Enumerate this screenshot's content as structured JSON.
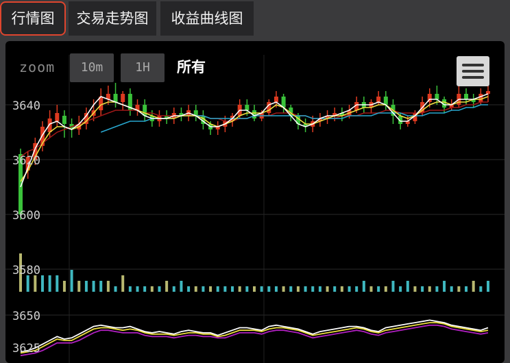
{
  "tabs": [
    {
      "label": "行情图",
      "active": true
    },
    {
      "label": "交易走势图",
      "active": false
    },
    {
      "label": "收益曲线图",
      "active": false
    }
  ],
  "toolbar": {
    "zoom_label": "zoom",
    "zoom_10m": "10m",
    "zoom_1h": "1H",
    "zoom_all": "所有",
    "menu_icon": "hamburger-menu-icon"
  },
  "colors": {
    "up_candle": "#dd3a20",
    "down_candle": "#3ac23a",
    "ma_white": "#ffffff",
    "ma_yellow": "#f0e040",
    "ma_darkred": "#a01818",
    "ma_cyan": "#28a8d0",
    "vol_olive": "#b8b870",
    "vol_teal": "#3fb8c0",
    "indicator_purple": "#b020c0",
    "active_tab_border": "#e0452e"
  },
  "chart_data": {
    "type": "candlestick",
    "price_axis_ticks": [
      "3640",
      "3620",
      "3600",
      "3580"
    ],
    "indicator_axis_ticks": [
      "3650",
      "3625"
    ],
    "candles": [
      [
        3622,
        3600,
        3624,
        3598
      ],
      [
        3616,
        3621,
        3623,
        3613
      ],
      [
        3620,
        3626,
        3628,
        3618
      ],
      [
        3625,
        3632,
        3634,
        3623
      ],
      [
        3630,
        3635,
        3638,
        3628
      ],
      [
        3634,
        3637,
        3640,
        3632
      ],
      [
        3636,
        3633,
        3638,
        3628
      ],
      [
        3633,
        3631,
        3635,
        3628
      ],
      [
        3631,
        3633,
        3636,
        3629
      ],
      [
        3633,
        3637,
        3639,
        3631
      ],
      [
        3636,
        3638,
        3642,
        3634
      ],
      [
        3638,
        3643,
        3646,
        3636
      ],
      [
        3642,
        3644,
        3647,
        3640
      ],
      [
        3644,
        3641,
        3648,
        3639
      ],
      [
        3641,
        3644,
        3645,
        3638
      ],
      [
        3644,
        3638,
        3646,
        3636
      ],
      [
        3638,
        3640,
        3642,
        3636
      ],
      [
        3640,
        3636,
        3642,
        3634
      ],
      [
        3636,
        3634,
        3638,
        3632
      ],
      [
        3634,
        3636,
        3638,
        3632
      ],
      [
        3636,
        3635,
        3638,
        3633
      ],
      [
        3635,
        3637,
        3639,
        3633
      ],
      [
        3637,
        3636,
        3639,
        3634
      ],
      [
        3636,
        3638,
        3640,
        3634
      ],
      [
        3638,
        3636,
        3640,
        3634
      ],
      [
        3636,
        3633,
        3638,
        3631
      ],
      [
        3633,
        3631,
        3634,
        3629
      ],
      [
        3631,
        3632,
        3634,
        3629
      ],
      [
        3632,
        3634,
        3636,
        3630
      ],
      [
        3634,
        3636,
        3637,
        3632
      ],
      [
        3636,
        3640,
        3642,
        3635
      ],
      [
        3640,
        3638,
        3642,
        3636
      ],
      [
        3638,
        3635,
        3640,
        3634
      ],
      [
        3635,
        3637,
        3638,
        3634
      ],
      [
        3637,
        3641,
        3642,
        3636
      ],
      [
        3641,
        3643,
        3645,
        3639
      ],
      [
        3643,
        3639,
        3644,
        3637
      ],
      [
        3639,
        3636,
        3640,
        3634
      ],
      [
        3636,
        3633,
        3637,
        3631
      ],
      [
        3633,
        3632,
        3635,
        3630
      ],
      [
        3632,
        3634,
        3636,
        3630
      ],
      [
        3634,
        3635,
        3637,
        3632
      ],
      [
        3635,
        3636,
        3638,
        3633
      ],
      [
        3636,
        3637,
        3639,
        3634
      ],
      [
        3637,
        3636,
        3639,
        3634
      ],
      [
        3636,
        3638,
        3640,
        3635
      ],
      [
        3638,
        3641,
        3643,
        3637
      ],
      [
        3641,
        3639,
        3643,
        3637
      ],
      [
        3639,
        3641,
        3642,
        3637
      ],
      [
        3641,
        3643,
        3645,
        3640
      ],
      [
        3643,
        3640,
        3645,
        3638
      ],
      [
        3640,
        3636,
        3642,
        3633
      ],
      [
        3636,
        3633,
        3637,
        3631
      ],
      [
        3633,
        3634,
        3636,
        3632
      ],
      [
        3634,
        3637,
        3638,
        3633
      ],
      [
        3637,
        3641,
        3643,
        3636
      ],
      [
        3641,
        3644,
        3646,
        3639
      ],
      [
        3644,
        3642,
        3647,
        3640
      ],
      [
        3642,
        3639,
        3643,
        3637
      ],
      [
        3639,
        3640,
        3642,
        3638
      ],
      [
        3640,
        3644,
        3648,
        3639
      ],
      [
        3644,
        3642,
        3646,
        3640
      ],
      [
        3642,
        3641,
        3644,
        3639
      ],
      [
        3641,
        3644,
        3646,
        3640
      ],
      [
        3644,
        3645,
        3647,
        3641
      ]
    ],
    "ma_white": [
      3610,
      3617,
      3624,
      3629,
      3633,
      3634,
      3632,
      3631,
      3633,
      3636,
      3640,
      3643,
      3642,
      3641,
      3640,
      3639,
      3638,
      3636,
      3635,
      3635,
      3635,
      3636,
      3636,
      3637,
      3636,
      3634,
      3632,
      3632,
      3633,
      3635,
      3638,
      3638,
      3636,
      3637,
      3640,
      3641,
      3639,
      3636,
      3633,
      3632,
      3633,
      3635,
      3636,
      3636,
      3637,
      3638,
      3640,
      3640,
      3640,
      3641,
      3640,
      3637,
      3634,
      3634,
      3636,
      3639,
      3642,
      3642,
      3640,
      3640,
      3642,
      3642,
      3642,
      3643,
      3644
    ],
    "ma_yellow": [
      3612,
      3616,
      3621,
      3626,
      3630,
      3632,
      3632,
      3631,
      3632,
      3634,
      3637,
      3640,
      3641,
      3641,
      3640,
      3639,
      3638,
      3637,
      3636,
      3635,
      3635,
      3635,
      3636,
      3636,
      3636,
      3635,
      3633,
      3632,
      3633,
      3634,
      3636,
      3637,
      3637,
      3637,
      3638,
      3640,
      3639,
      3637,
      3635,
      3633,
      3633,
      3634,
      3635,
      3636,
      3636,
      3637,
      3638,
      3639,
      3639,
      3640,
      3640,
      3638,
      3636,
      3635,
      3636,
      3638,
      3640,
      3641,
      3641,
      3640,
      3641,
      3641,
      3642,
      3642,
      3643
    ],
    "ma_darkred": [
      3621,
      3623,
      3624,
      3626,
      3628,
      3630,
      3631,
      3632,
      3633,
      3634,
      3635,
      3636,
      3637,
      3638,
      3638,
      3638,
      3638,
      3637,
      3637,
      3636,
      3636,
      3636,
      3636,
      3636,
      3636,
      3636,
      3635,
      3635,
      3634,
      3634,
      3635,
      3635,
      3636,
      3636,
      3636,
      3637,
      3637,
      3637,
      3636,
      3636,
      3635,
      3635,
      3635,
      3635,
      3636,
      3636,
      3636,
      3637,
      3637,
      3637,
      3638,
      3638,
      3637,
      3637,
      3637,
      3637,
      3638,
      3638,
      3638,
      3639,
      3639,
      3640,
      3640,
      3641,
      3641
    ],
    "ma_cyan": [
      null,
      null,
      null,
      null,
      null,
      null,
      null,
      null,
      null,
      null,
      null,
      3630,
      3631,
      3632,
      3633,
      3634,
      3634,
      3634,
      3635,
      3635,
      3635,
      3635,
      3636,
      3636,
      3636,
      3636,
      3635,
      3635,
      3635,
      3635,
      3635,
      3635,
      3636,
      3636,
      3636,
      3636,
      3636,
      3636,
      3636,
      3636,
      3635,
      3635,
      3635,
      3635,
      3635,
      3636,
      3636,
      3636,
      3636,
      3637,
      3637,
      3637,
      3637,
      3636,
      3636,
      3636,
      3637,
      3637,
      3637,
      3638,
      3638,
      3639,
      3639,
      3640,
      3640
    ],
    "volumes": [
      7,
      3,
      3,
      3,
      3,
      3,
      2,
      4,
      2,
      2,
      2,
      2,
      2,
      1,
      3,
      1,
      1,
      1,
      1,
      1,
      2,
      1,
      2,
      1,
      1,
      1,
      1,
      1,
      1,
      1,
      1,
      1,
      1,
      1,
      1,
      1,
      1,
      1,
      1,
      1,
      1,
      1,
      1,
      1,
      1,
      1,
      1,
      2,
      1,
      1,
      1,
      2,
      1,
      2,
      1,
      1,
      1,
      1,
      2,
      1,
      1,
      1,
      2,
      1,
      2
    ],
    "indicator_white": [
      3621,
      3622,
      3624,
      3627,
      3630,
      3633,
      3631,
      3632,
      3635,
      3638,
      3641,
      3642,
      3641,
      3640,
      3640,
      3641,
      3639,
      3637,
      3636,
      3637,
      3636,
      3635,
      3637,
      3638,
      3637,
      3636,
      3636,
      3634,
      3636,
      3638,
      3640,
      3640,
      3639,
      3638,
      3641,
      3642,
      3641,
      3640,
      3639,
      3637,
      3635,
      3637,
      3638,
      3639,
      3640,
      3641,
      3641,
      3640,
      3638,
      3637,
      3640,
      3641,
      3642,
      3643,
      3644,
      3645,
      3646,
      3645,
      3644,
      3642,
      3641,
      3640,
      3639,
      3638,
      3640
    ],
    "indicator_yellow": [
      3620,
      3621,
      3622,
      3625,
      3628,
      3631,
      3630,
      3630,
      3633,
      3636,
      3639,
      3640,
      3640,
      3639,
      3638,
      3639,
      3638,
      3636,
      3635,
      3635,
      3635,
      3634,
      3635,
      3636,
      3636,
      3635,
      3635,
      3633,
      3634,
      3636,
      3638,
      3638,
      3638,
      3637,
      3639,
      3640,
      3640,
      3639,
      3638,
      3636,
      3634,
      3635,
      3636,
      3637,
      3638,
      3639,
      3640,
      3639,
      3637,
      3636,
      3638,
      3639,
      3640,
      3641,
      3642,
      3643,
      3644,
      3644,
      3643,
      3641,
      3640,
      3639,
      3638,
      3637,
      3638
    ],
    "indicator_purple": [
      3618,
      3619,
      3620,
      3622,
      3625,
      3628,
      3628,
      3628,
      3630,
      3633,
      3636,
      3638,
      3638,
      3637,
      3636,
      3636,
      3636,
      3634,
      3633,
      3633,
      3633,
      3632,
      3633,
      3634,
      3634,
      3633,
      3633,
      3632,
      3632,
      3634,
      3636,
      3636,
      3636,
      3635,
      3637,
      3638,
      3638,
      3637,
      3636,
      3634,
      3632,
      3633,
      3634,
      3635,
      3636,
      3637,
      3638,
      3637,
      3635,
      3634,
      3636,
      3637,
      3638,
      3639,
      3640,
      3641,
      3642,
      3642,
      3641,
      3639,
      3638,
      3637,
      3636,
      3635,
      3636
    ]
  }
}
